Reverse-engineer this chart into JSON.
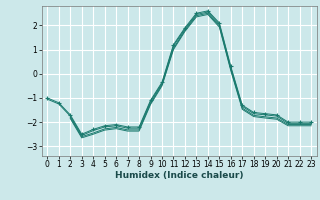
{
  "xlabel": "Humidex (Indice chaleur)",
  "bg_color": "#cce8ea",
  "grid_color": "#ffffff",
  "line_color": "#1a7a6e",
  "xlim": [
    -0.5,
    23.5
  ],
  "ylim": [
    -3.4,
    2.8
  ],
  "xticks": [
    0,
    1,
    2,
    3,
    4,
    5,
    6,
    7,
    8,
    9,
    10,
    11,
    12,
    13,
    14,
    15,
    16,
    17,
    18,
    19,
    20,
    21,
    22,
    23
  ],
  "yticks": [
    -3,
    -2,
    -1,
    0,
    1,
    2
  ],
  "main_x": [
    0,
    1,
    2,
    3,
    4,
    5,
    6,
    7,
    8,
    9,
    10,
    11,
    12,
    13,
    14,
    15,
    16,
    17,
    18,
    19,
    20,
    21,
    22,
    23
  ],
  "main_y": [
    -1.0,
    -1.2,
    -1.7,
    -2.5,
    -2.3,
    -2.15,
    -2.1,
    -2.2,
    -2.2,
    -1.1,
    -0.35,
    1.2,
    1.9,
    2.5,
    2.6,
    2.1,
    0.3,
    -1.3,
    -1.6,
    -1.65,
    -1.7,
    -2.0,
    -2.0,
    -2.0
  ],
  "band1_x": [
    0,
    1,
    2,
    3,
    4,
    5,
    6,
    7,
    8,
    9,
    10,
    11,
    12,
    13,
    14,
    15,
    16,
    17,
    18,
    19,
    20,
    21,
    22,
    23
  ],
  "band1_y": [
    -1.05,
    -1.25,
    -1.75,
    -2.55,
    -2.35,
    -2.2,
    -2.15,
    -2.25,
    -2.25,
    -1.15,
    -0.4,
    1.15,
    1.85,
    2.45,
    2.55,
    2.05,
    0.25,
    -1.35,
    -1.65,
    -1.7,
    -1.75,
    -2.05,
    -2.05,
    -2.05
  ],
  "band2_x": [
    2,
    3,
    4,
    5,
    6,
    7,
    8,
    9,
    10,
    11,
    12,
    13,
    14,
    15,
    16,
    17,
    18,
    19,
    20,
    21,
    22,
    23
  ],
  "band2_y": [
    -1.8,
    -2.6,
    -2.45,
    -2.28,
    -2.22,
    -2.32,
    -2.32,
    -1.22,
    -0.45,
    1.05,
    1.8,
    2.4,
    2.5,
    1.98,
    0.18,
    -1.42,
    -1.72,
    -1.78,
    -1.83,
    -2.1,
    -2.1,
    -2.1
  ],
  "band3_x": [
    2,
    3,
    4,
    5,
    6,
    7,
    8,
    9,
    10,
    11,
    12,
    13,
    14,
    15,
    16,
    17,
    18,
    19,
    20,
    21,
    22,
    23
  ],
  "band3_y": [
    -1.85,
    -2.65,
    -2.5,
    -2.33,
    -2.27,
    -2.37,
    -2.37,
    -1.27,
    -0.5,
    1.0,
    1.75,
    2.35,
    2.45,
    1.93,
    0.13,
    -1.47,
    -1.77,
    -1.83,
    -1.88,
    -2.15,
    -2.15,
    -2.15
  ]
}
